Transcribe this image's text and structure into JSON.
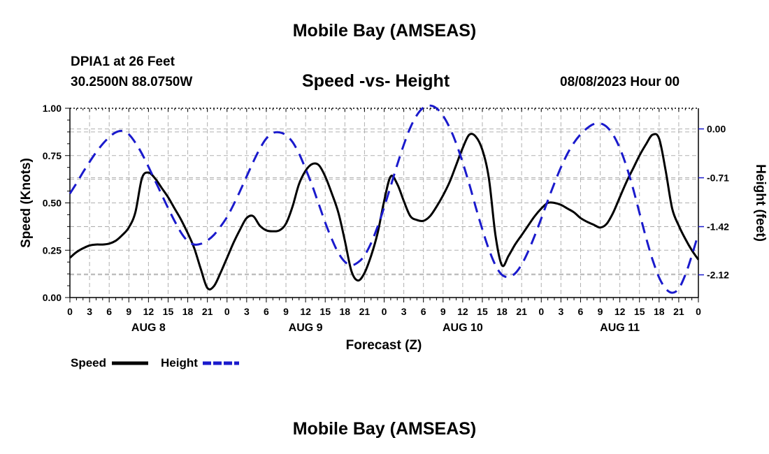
{
  "page": {
    "title": "Mobile Bay (AMSEAS)",
    "station": "DPIA1 at 26 Feet",
    "coords": "30.2500N  88.0750W",
    "subtitle": "Speed -vs- Height",
    "datetime": "08/08/2023 Hour 00",
    "footer_title": "Mobile Bay (AMSEAS)"
  },
  "legend": {
    "speed_label": "Speed",
    "height_label": "Height"
  },
  "colors": {
    "speed": "#000000",
    "height": "#1a1acc",
    "grid": "#b0b0b0"
  },
  "chart_data": {
    "type": "line",
    "title": "Speed -vs- Height",
    "xlabel": "Forecast (Z)",
    "ylabel": "Speed (Knots)",
    "y2label": "Height (feet)",
    "xlim": [
      0,
      96
    ],
    "ylim": [
      0,
      1
    ],
    "y2lim": [
      -2.45,
      0.3
    ],
    "x_ticks": [
      0,
      3,
      6,
      9,
      12,
      15,
      18,
      21,
      24,
      27,
      30,
      33,
      36,
      39,
      42,
      45,
      48,
      51,
      54,
      57,
      60,
      63,
      66,
      69,
      72,
      75,
      78,
      81,
      84,
      87,
      90,
      93,
      96
    ],
    "x_tick_labels": [
      "0",
      "3",
      "6",
      "9",
      "12",
      "15",
      "18",
      "21",
      "0",
      "3",
      "6",
      "9",
      "12",
      "15",
      "18",
      "21",
      "0",
      "3",
      "6",
      "9",
      "12",
      "15",
      "18",
      "21",
      "0",
      "3",
      "6",
      "9",
      "12",
      "15",
      "18",
      "21",
      "0"
    ],
    "date_labels": [
      {
        "x": 12,
        "label": "AUG 8"
      },
      {
        "x": 36,
        "label": "AUG 9"
      },
      {
        "x": 60,
        "label": "AUG 10"
      },
      {
        "x": 84,
        "label": "AUG 11"
      }
    ],
    "y_ticks": [
      0,
      0.25,
      0.5,
      0.75,
      1.0
    ],
    "y_tick_labels": [
      "0.00",
      "0.25",
      "0.50",
      "0.75",
      "1.00"
    ],
    "y2_ticks": [
      0.0,
      -0.71,
      -1.42,
      -2.12
    ],
    "y2_tick_labels": [
      "0.00",
      "-0.71",
      "-1.42",
      "-2.12"
    ],
    "grid": true,
    "series": [
      {
        "name": "Speed",
        "axis": "left",
        "style": "solid",
        "x": [
          0,
          1,
          2,
          3,
          4,
          5,
          6,
          7,
          8,
          9,
          10,
          11,
          12,
          13,
          14,
          15,
          16,
          17,
          18,
          19,
          20,
          21,
          22,
          23,
          24,
          25,
          26,
          27,
          28,
          29,
          30,
          31,
          32,
          33,
          34,
          35,
          36,
          37,
          38,
          39,
          40,
          41,
          42,
          43,
          44,
          45,
          46,
          47,
          48,
          49,
          50,
          51,
          52,
          53,
          54,
          55,
          56,
          57,
          58,
          59,
          60,
          61,
          62,
          63,
          64,
          65,
          66,
          67,
          68,
          69,
          70,
          71,
          72,
          73,
          74,
          75,
          76,
          77,
          78,
          79,
          80,
          81,
          82,
          83,
          84,
          85,
          86,
          87,
          88,
          89,
          90,
          91,
          92,
          93,
          94,
          95,
          96
        ],
        "values": [
          0.21,
          0.24,
          0.26,
          0.275,
          0.28,
          0.28,
          0.285,
          0.3,
          0.33,
          0.37,
          0.45,
          0.63,
          0.66,
          0.63,
          0.58,
          0.53,
          0.47,
          0.41,
          0.34,
          0.26,
          0.15,
          0.05,
          0.06,
          0.13,
          0.21,
          0.29,
          0.36,
          0.42,
          0.43,
          0.38,
          0.355,
          0.35,
          0.355,
          0.39,
          0.48,
          0.6,
          0.67,
          0.705,
          0.7,
          0.64,
          0.55,
          0.45,
          0.3,
          0.14,
          0.09,
          0.13,
          0.22,
          0.34,
          0.51,
          0.64,
          0.6,
          0.51,
          0.43,
          0.41,
          0.405,
          0.43,
          0.48,
          0.54,
          0.61,
          0.7,
          0.79,
          0.86,
          0.85,
          0.78,
          0.63,
          0.33,
          0.17,
          0.22,
          0.28,
          0.33,
          0.38,
          0.43,
          0.47,
          0.5,
          0.5,
          0.49,
          0.47,
          0.45,
          0.42,
          0.4,
          0.385,
          0.37,
          0.39,
          0.45,
          0.53,
          0.61,
          0.68,
          0.75,
          0.81,
          0.86,
          0.84,
          0.67,
          0.47,
          0.38,
          0.31,
          0.25,
          0.2
        ]
      },
      {
        "name": "Height",
        "axis": "right",
        "style": "dashed",
        "x": [
          0,
          1,
          2,
          3,
          4,
          5,
          6,
          7,
          8,
          9,
          10,
          11,
          12,
          13,
          14,
          15,
          16,
          17,
          18,
          19,
          20,
          21,
          22,
          23,
          24,
          25,
          26,
          27,
          28,
          29,
          30,
          31,
          32,
          33,
          34,
          35,
          36,
          37,
          38,
          39,
          40,
          41,
          42,
          43,
          44,
          45,
          46,
          47,
          48,
          49,
          50,
          51,
          52,
          53,
          54,
          55,
          56,
          57,
          58,
          59,
          60,
          61,
          62,
          63,
          64,
          65,
          66,
          67,
          68,
          69,
          70,
          71,
          72,
          73,
          74,
          75,
          76,
          77,
          78,
          79,
          80,
          81,
          82,
          83,
          84,
          85,
          86,
          87,
          88,
          89,
          90,
          91,
          92,
          93,
          94,
          95,
          96
        ],
        "values": [
          -0.94,
          -0.79,
          -0.63,
          -0.48,
          -0.34,
          -0.22,
          -0.12,
          -0.05,
          -0.03,
          -0.08,
          -0.2,
          -0.36,
          -0.55,
          -0.75,
          -0.95,
          -1.15,
          -1.34,
          -1.51,
          -1.63,
          -1.68,
          -1.67,
          -1.62,
          -1.54,
          -1.42,
          -1.28,
          -1.1,
          -0.9,
          -0.69,
          -0.48,
          -0.29,
          -0.14,
          -0.06,
          -0.05,
          -0.09,
          -0.19,
          -0.36,
          -0.58,
          -0.82,
          -1.09,
          -1.36,
          -1.6,
          -1.8,
          -1.93,
          -1.98,
          -1.94,
          -1.84,
          -1.66,
          -1.42,
          -1.14,
          -0.83,
          -0.52,
          -0.23,
          0.02,
          0.2,
          0.31,
          0.34,
          0.3,
          0.19,
          0.02,
          -0.21,
          -0.49,
          -0.8,
          -1.14,
          -1.46,
          -1.75,
          -1.98,
          -2.12,
          -2.15,
          -2.1,
          -1.97,
          -1.78,
          -1.55,
          -1.3,
          -1.04,
          -0.79,
          -0.56,
          -0.36,
          -0.2,
          -0.08,
          0.01,
          0.07,
          0.08,
          0.03,
          -0.09,
          -0.28,
          -0.54,
          -0.86,
          -1.22,
          -1.58,
          -1.9,
          -2.16,
          -2.32,
          -2.38,
          -2.32,
          -2.12,
          -1.84,
          -1.52
        ]
      }
    ]
  }
}
